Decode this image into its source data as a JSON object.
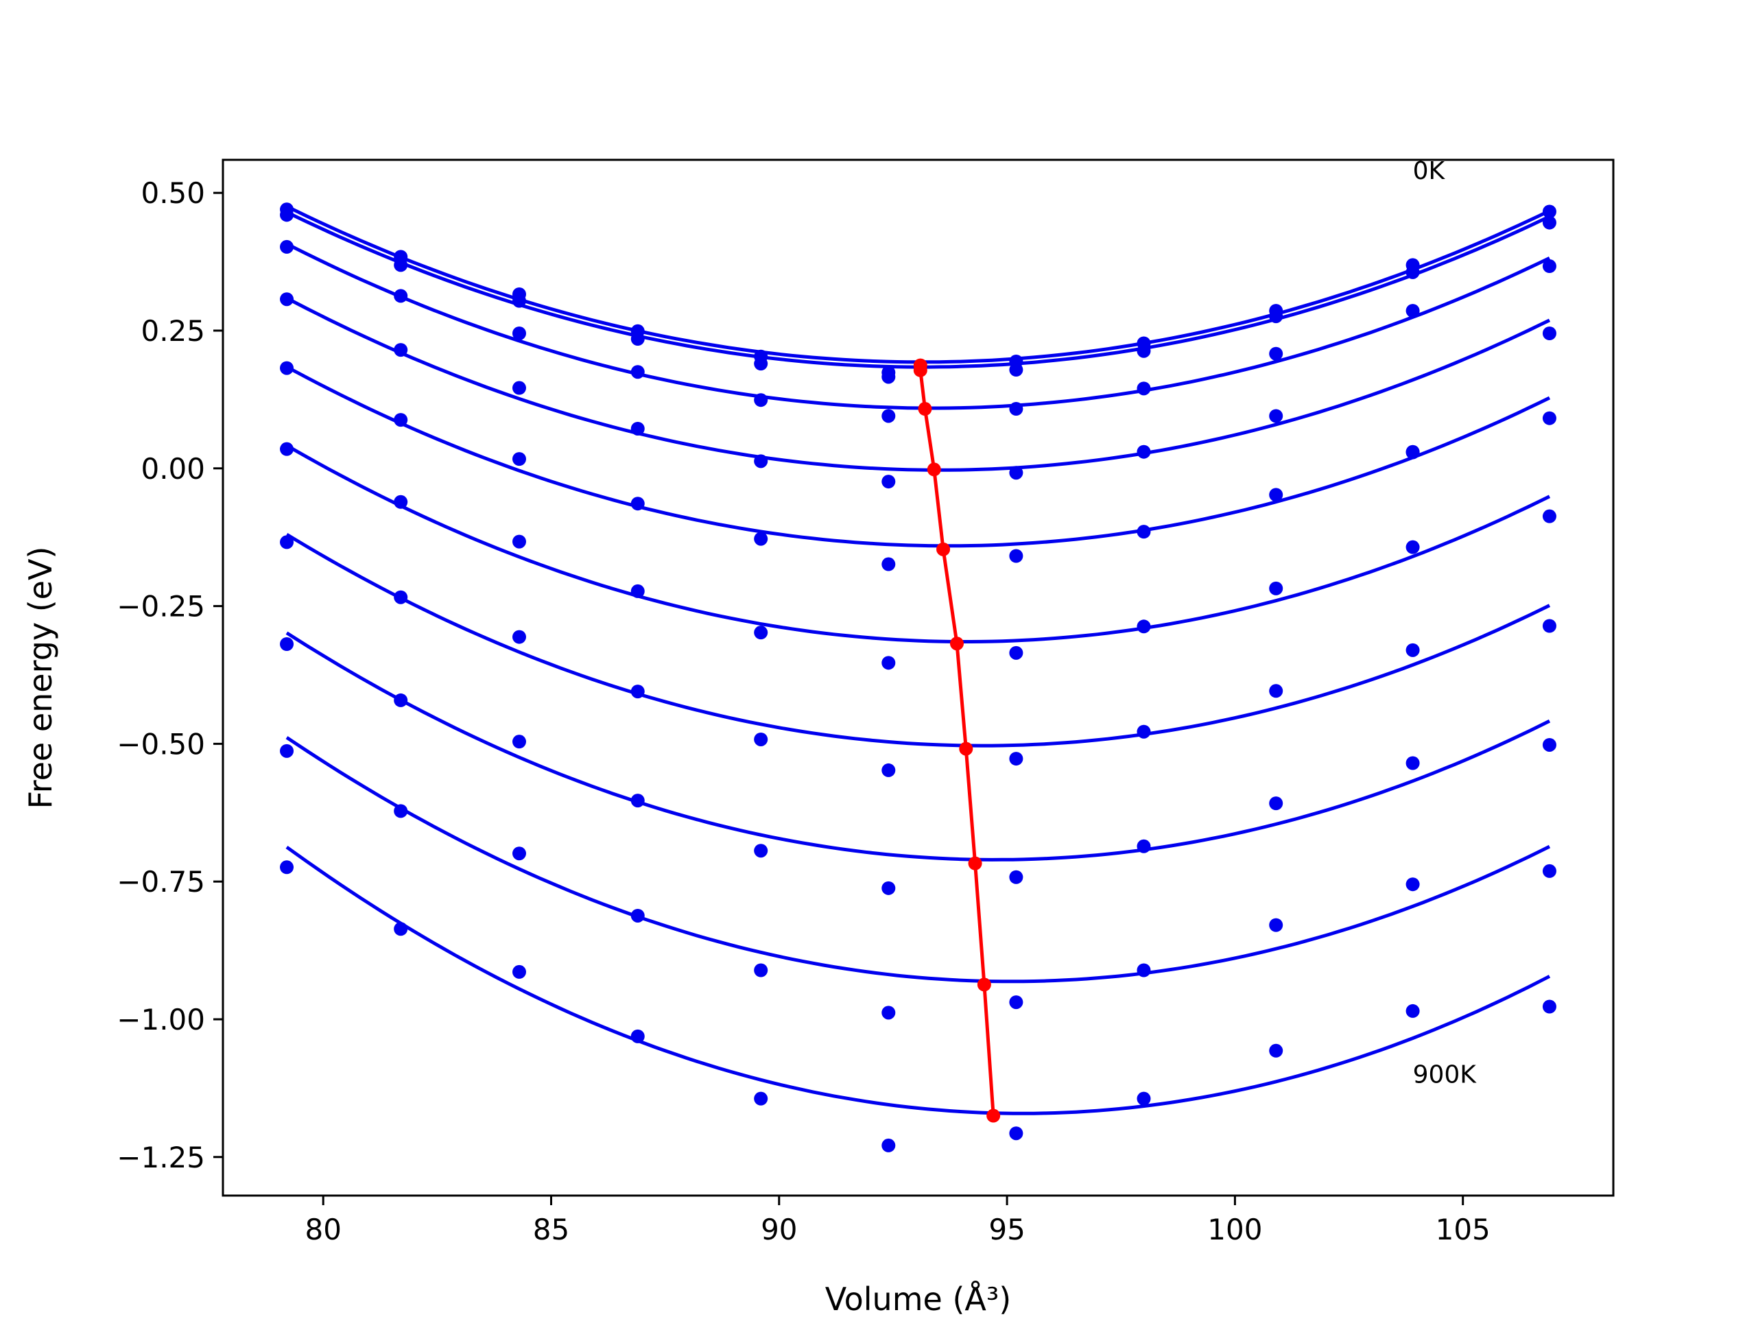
{
  "chart_data": {
    "type": "line",
    "title": "",
    "xlabel": "Volume (Å³)",
    "ylabel": "Free energy (eV)",
    "xlim": [
      77.8,
      108.3
    ],
    "ylim": [
      -1.32,
      0.56
    ],
    "xticks": [
      80,
      85,
      90,
      95,
      100,
      105
    ],
    "xtick_labels": [
      "80",
      "85",
      "90",
      "95",
      "100",
      "105"
    ],
    "yticks": [
      0.5,
      0.25,
      0.0,
      -0.25,
      -0.5,
      -0.75,
      -1.0,
      -1.25
    ],
    "ytick_labels": [
      "0.50",
      "0.25",
      "0.00",
      "−0.25",
      "−0.50",
      "−0.75",
      "−1.00",
      "−1.25"
    ],
    "grid": false,
    "annotations": [
      {
        "text": "0K",
        "x": 103.9,
        "y": 0.525
      },
      {
        "text": "900K",
        "x": 103.9,
        "y": -1.115
      }
    ],
    "colors": {
      "fit": "#0000ee",
      "points": "#0000ee",
      "minimum_line": "#ff0000"
    },
    "volumes": [
      79.2,
      81.7,
      84.3,
      86.9,
      89.6,
      92.4,
      95.2,
      98.0,
      100.9,
      103.9,
      106.9
    ],
    "series": [
      {
        "fit": [
          0.47,
          0.384,
          0.313,
          0.255,
          0.212,
          0.187,
          0.192,
          0.228,
          0.284,
          0.363,
          0.466
        ],
        "points": [
          0.47,
          0.384,
          0.316,
          0.249,
          0.203,
          0.174,
          0.194,
          0.227,
          0.286,
          0.369,
          0.466
        ]
      },
      {
        "fit": [
          0.46,
          0.374,
          0.303,
          0.246,
          0.203,
          0.178,
          0.183,
          0.218,
          0.275,
          0.354,
          0.455
        ],
        "points": [
          0.46,
          0.369,
          0.304,
          0.235,
          0.19,
          0.166,
          0.179,
          0.213,
          0.276,
          0.356,
          0.446
        ]
      },
      {
        "fit": [
          0.41,
          0.31,
          0.233,
          0.17,
          0.127,
          0.108,
          0.113,
          0.143,
          0.2,
          0.279,
          0.375
        ],
        "points": [
          0.402,
          0.313,
          0.245,
          0.175,
          0.124,
          0.095,
          0.108,
          0.145,
          0.208,
          0.286,
          0.367
        ]
      },
      {
        "fit": [
          0.315,
          0.212,
          0.12,
          0.057,
          0.017,
          -0.002,
          0.003,
          0.033,
          0.085,
          0.165,
          0.26
        ],
        "points": [
          0.307,
          0.215,
          0.146,
          0.072,
          0.013,
          -0.024,
          -0.008,
          0.03,
          0.095,
          0.03,
          0.245
        ]
      },
      {
        "fit": [
          0.195,
          0.08,
          -0.01,
          -0.078,
          -0.12,
          -0.14,
          -0.135,
          -0.105,
          -0.05,
          0.025,
          0.115
        ],
        "points": [
          0.182,
          0.088,
          0.017,
          -0.064,
          -0.128,
          -0.174,
          -0.159,
          -0.115,
          -0.048,
          0.029,
          0.091
        ]
      },
      {
        "fit": [
          0.05,
          -0.07,
          -0.165,
          -0.24,
          -0.285,
          -0.31,
          -0.31,
          -0.285,
          -0.235,
          -0.155,
          -0.06
        ],
        "points": [
          0.035,
          -0.061,
          -0.133,
          -0.223,
          -0.298,
          -0.353,
          -0.335,
          -0.287,
          -0.218,
          -0.143,
          -0.087
        ]
      },
      {
        "fit": [
          -0.11,
          -0.24,
          -0.34,
          -0.415,
          -0.465,
          -0.495,
          -0.5,
          -0.48,
          -0.43,
          -0.355,
          -0.255
        ],
        "points": [
          -0.134,
          -0.234,
          -0.306,
          -0.405,
          -0.492,
          -0.548,
          -0.527,
          -0.478,
          -0.404,
          -0.33,
          -0.286
        ]
      },
      {
        "fit": [
          -0.29,
          -0.425,
          -0.53,
          -0.61,
          -0.665,
          -0.7,
          -0.71,
          -0.69,
          -0.64,
          -0.565,
          -0.465
        ],
        "points": [
          -0.319,
          -0.421,
          -0.496,
          -0.603,
          -0.694,
          -0.762,
          -0.742,
          -0.686,
          -0.608,
          -0.535,
          -0.502
        ]
      },
      {
        "fit": [
          -0.485,
          -0.62,
          -0.73,
          -0.815,
          -0.875,
          -0.915,
          -0.935,
          -0.92,
          -0.87,
          -0.79,
          -0.69
        ],
        "points": [
          -0.513,
          -0.622,
          -0.699,
          -0.812,
          -0.911,
          -0.988,
          -0.969,
          -0.911,
          -0.829,
          -0.755,
          -0.731
        ]
      },
      {
        "fit": [
          -0.69,
          -0.825,
          -0.94,
          -1.04,
          -1.11,
          -1.155,
          -1.175,
          -1.16,
          -1.11,
          -1.03,
          -0.925
        ],
        "points": [
          -0.724,
          -0.836,
          -0.914,
          -1.031,
          -1.144,
          -1.229,
          -1.207,
          -1.144,
          -1.057,
          -0.985,
          -0.977
        ]
      }
    ],
    "minimum_curve": {
      "x": [
        93.1,
        93.1,
        93.2,
        93.4,
        93.6,
        93.9,
        94.1,
        94.3,
        94.5,
        94.7
      ],
      "y": [
        0.187,
        0.178,
        0.108,
        -0.002,
        -0.147,
        -0.318,
        -0.509,
        -0.717,
        -0.937,
        -1.175
      ]
    }
  }
}
